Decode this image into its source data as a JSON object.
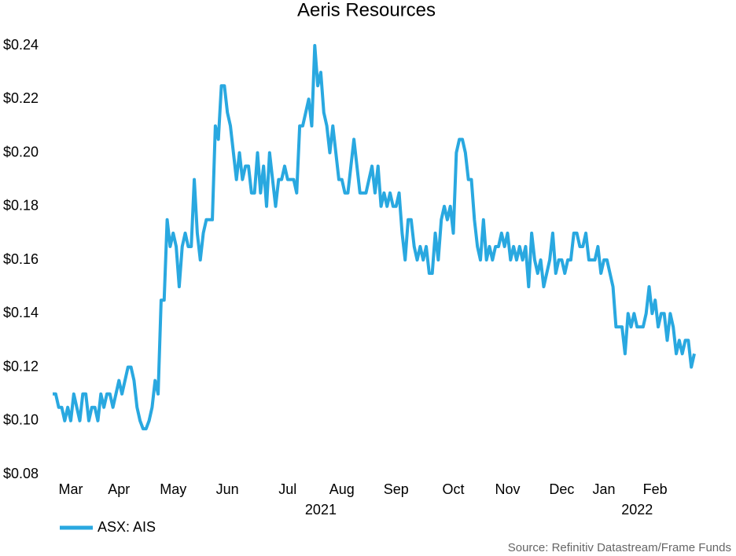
{
  "chart_data": {
    "type": "line",
    "title": "Aeris Resources",
    "series": [
      {
        "name": "ASX: AIS",
        "color": "#29a8e0",
        "values": [
          0.11,
          0.11,
          0.105,
          0.105,
          0.1,
          0.105,
          0.1,
          0.11,
          0.105,
          0.1,
          0.11,
          0.11,
          0.1,
          0.105,
          0.105,
          0.1,
          0.11,
          0.105,
          0.11,
          0.11,
          0.105,
          0.11,
          0.115,
          0.11,
          0.115,
          0.12,
          0.12,
          0.115,
          0.105,
          0.1,
          0.097,
          0.097,
          0.1,
          0.105,
          0.115,
          0.11,
          0.145,
          0.145,
          0.175,
          0.165,
          0.17,
          0.165,
          0.15,
          0.165,
          0.17,
          0.165,
          0.165,
          0.19,
          0.17,
          0.16,
          0.17,
          0.175,
          0.175,
          0.175,
          0.21,
          0.205,
          0.225,
          0.225,
          0.215,
          0.21,
          0.2,
          0.19,
          0.2,
          0.19,
          0.195,
          0.195,
          0.185,
          0.185,
          0.2,
          0.185,
          0.195,
          0.18,
          0.2,
          0.19,
          0.18,
          0.19,
          0.19,
          0.195,
          0.19,
          0.19,
          0.19,
          0.185,
          0.21,
          0.21,
          0.215,
          0.22,
          0.21,
          0.24,
          0.225,
          0.23,
          0.215,
          0.21,
          0.2,
          0.21,
          0.2,
          0.19,
          0.19,
          0.185,
          0.185,
          0.195,
          0.205,
          0.195,
          0.185,
          0.185,
          0.185,
          0.19,
          0.195,
          0.185,
          0.195,
          0.18,
          0.185,
          0.18,
          0.185,
          0.18,
          0.18,
          0.185,
          0.17,
          0.16,
          0.175,
          0.175,
          0.165,
          0.16,
          0.165,
          0.16,
          0.165,
          0.155,
          0.155,
          0.17,
          0.16,
          0.175,
          0.18,
          0.175,
          0.18,
          0.17,
          0.2,
          0.205,
          0.205,
          0.2,
          0.19,
          0.19,
          0.175,
          0.165,
          0.16,
          0.175,
          0.16,
          0.165,
          0.16,
          0.165,
          0.165,
          0.17,
          0.165,
          0.17,
          0.16,
          0.165,
          0.16,
          0.165,
          0.16,
          0.165,
          0.15,
          0.17,
          0.16,
          0.155,
          0.16,
          0.15,
          0.155,
          0.16,
          0.17,
          0.155,
          0.16,
          0.16,
          0.155,
          0.16,
          0.16,
          0.17,
          0.17,
          0.165,
          0.165,
          0.17,
          0.16,
          0.16,
          0.16,
          0.165,
          0.155,
          0.16,
          0.16,
          0.155,
          0.15,
          0.135,
          0.135,
          0.135,
          0.125,
          0.14,
          0.135,
          0.14,
          0.135,
          0.135,
          0.135,
          0.14,
          0.15,
          0.14,
          0.145,
          0.135,
          0.14,
          0.14,
          0.13,
          0.14,
          0.135,
          0.125,
          0.13,
          0.125,
          0.13,
          0.13,
          0.12,
          0.125
        ]
      }
    ],
    "xlim": [
      0,
      213
    ],
    "xticks": [
      {
        "value": 6,
        "label": "Mar"
      },
      {
        "value": 22,
        "label": "Apr"
      },
      {
        "value": 40,
        "label": "May"
      },
      {
        "value": 58,
        "label": "Jun"
      },
      {
        "value": 78,
        "label": "Jul"
      },
      {
        "value": 96,
        "label": "Aug"
      },
      {
        "value": 114,
        "label": "Sep"
      },
      {
        "value": 133,
        "label": "Oct"
      },
      {
        "value": 151,
        "label": "Nov"
      },
      {
        "value": 169,
        "label": "Dec"
      },
      {
        "value": 183,
        "label": "Jan"
      },
      {
        "value": 200,
        "label": "Feb"
      }
    ],
    "year_ticks": [
      {
        "value": 89,
        "label": "2021"
      },
      {
        "value": 194,
        "label": "2022"
      }
    ],
    "ylim": [
      0.08,
      0.24
    ],
    "yticks": [
      {
        "value": 0.08,
        "label": "$0.08"
      },
      {
        "value": 0.1,
        "label": "$0.10"
      },
      {
        "value": 0.12,
        "label": "$0.12"
      },
      {
        "value": 0.14,
        "label": "$0.14"
      },
      {
        "value": 0.16,
        "label": "$0.16"
      },
      {
        "value": 0.18,
        "label": "$0.18"
      },
      {
        "value": 0.2,
        "label": "$0.20"
      },
      {
        "value": 0.22,
        "label": "$0.22"
      },
      {
        "value": 0.24,
        "label": "$0.24"
      }
    ],
    "grid": false,
    "legend": "bottom-left",
    "source": "Source: Refinitiv Datastream/Frame Funds"
  }
}
